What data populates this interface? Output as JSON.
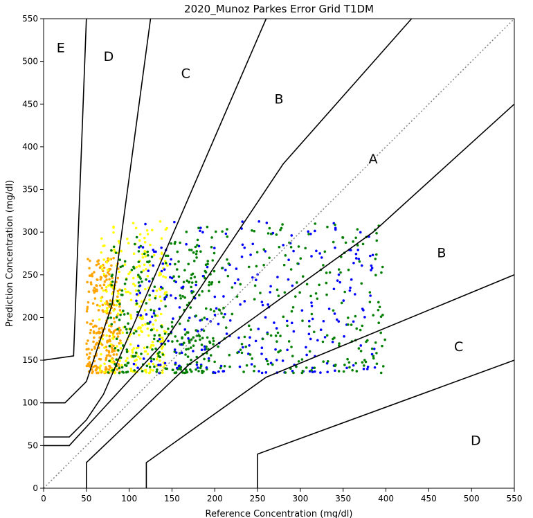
{
  "chart_data": {
    "type": "scatter",
    "title": "2020_Munoz Parkes Error Grid T1DM",
    "xlabel": "Reference Concentration (mg/dl)",
    "ylabel": "Prediction Concentration (mg/dl)",
    "xlim": [
      0,
      550
    ],
    "ylim": [
      0,
      550
    ],
    "xticks": [
      "0",
      "50",
      "100",
      "150",
      "200",
      "250",
      "300",
      "350",
      "400",
      "450",
      "500",
      "550"
    ],
    "yticks": [
      "0",
      "50",
      "100",
      "150",
      "200",
      "250",
      "300",
      "350",
      "400",
      "450",
      "500",
      "550"
    ],
    "grid": false,
    "identity_line": {
      "from": [
        0,
        0
      ],
      "to": [
        550,
        550
      ],
      "style": "dotted",
      "color": "#808080"
    },
    "zone_labels": [
      {
        "text": "E",
        "x": 20,
        "y": 515
      },
      {
        "text": "D",
        "x": 76,
        "y": 505
      },
      {
        "text": "C",
        "x": 166,
        "y": 485
      },
      {
        "text": "B",
        "x": 275,
        "y": 455
      },
      {
        "text": "A",
        "x": 385,
        "y": 385
      },
      {
        "text": "B",
        "x": 465,
        "y": 275
      },
      {
        "text": "C",
        "x": 485,
        "y": 165
      },
      {
        "text": "D",
        "x": 505,
        "y": 55
      }
    ],
    "boundaries": [
      {
        "name": "upper-E",
        "points": [
          [
            0,
            150
          ],
          [
            35,
            155
          ],
          [
            50,
            550
          ]
        ]
      },
      {
        "name": "upper-D",
        "points": [
          [
            0,
            100
          ],
          [
            25,
            100
          ],
          [
            50,
            125
          ],
          [
            80,
            215
          ],
          [
            125,
            550
          ]
        ]
      },
      {
        "name": "upper-C",
        "points": [
          [
            0,
            60
          ],
          [
            30,
            60
          ],
          [
            50,
            80
          ],
          [
            70,
            110
          ],
          [
            260,
            550
          ]
        ]
      },
      {
        "name": "upper-B",
        "points": [
          [
            0,
            50
          ],
          [
            30,
            50
          ],
          [
            140,
            170
          ],
          [
            280,
            380
          ],
          [
            430,
            550
          ]
        ]
      },
      {
        "name": "lower-B",
        "points": [
          [
            50,
            0
          ],
          [
            50,
            30
          ],
          [
            170,
            145
          ],
          [
            385,
            300
          ],
          [
            550,
            450
          ]
        ]
      },
      {
        "name": "lower-C",
        "points": [
          [
            120,
            0
          ],
          [
            120,
            30
          ],
          [
            260,
            130
          ],
          [
            550,
            250
          ]
        ]
      },
      {
        "name": "lower-D",
        "points": [
          [
            250,
            0
          ],
          [
            250,
            40
          ],
          [
            550,
            150
          ]
        ]
      }
    ],
    "series": [
      {
        "color": "#ffa500",
        "x_range": [
          50,
          90
        ],
        "y_range": [
          135,
          270
        ]
      },
      {
        "color": "#ffff00",
        "x_range": [
          65,
          145
        ],
        "y_range": [
          135,
          313
        ]
      },
      {
        "color": "#008000",
        "x_range": [
          75,
          200
        ],
        "y_range": [
          135,
          295
        ]
      },
      {
        "color": "#0000ff",
        "x_range": [
          105,
          390
        ],
        "y_range": [
          135,
          313
        ]
      },
      {
        "color": "#008000",
        "x_range": [
          150,
          400
        ],
        "y_range": [
          135,
          310
        ]
      }
    ]
  }
}
